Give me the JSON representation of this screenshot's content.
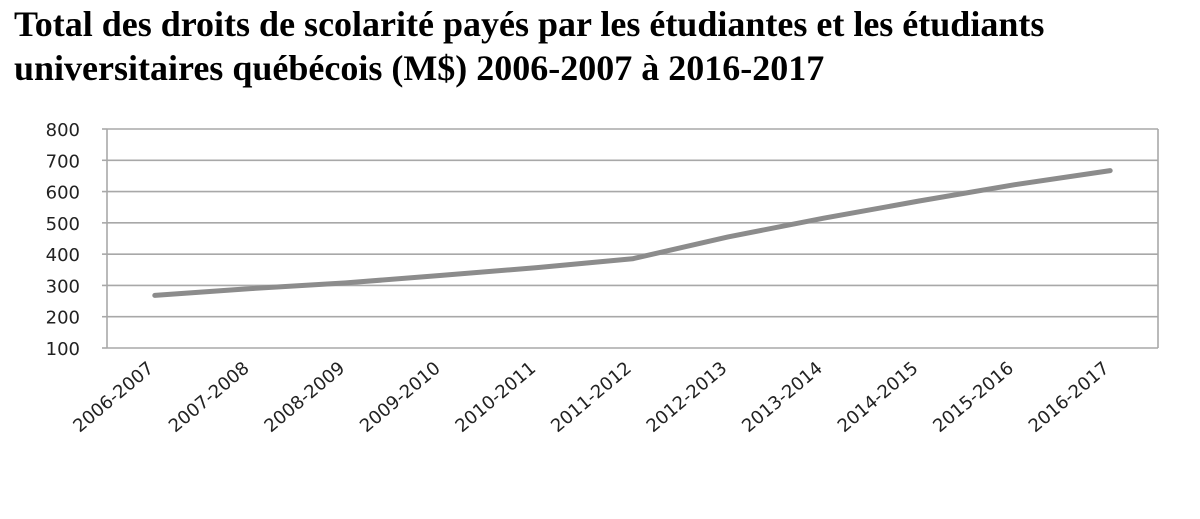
{
  "chart_data": {
    "type": "line",
    "title_line1": "Total des droits de scolarité payés par les étudiantes et les étudiants",
    "title_line2": "universitaires québécois (M$) 2006-2007 à 2016-2017",
    "categories": [
      "2006-2007",
      "2007-2008",
      "2008-2009",
      "2009-2010",
      "2010-2011",
      "2011-2012",
      "2012-2013",
      "2013-2014",
      "2014-2015",
      "2015-2016",
      "2016-2017"
    ],
    "series": [
      {
        "values": [
          268,
          290,
          308,
          332,
          357,
          385,
          455,
          515,
          570,
          622,
          667
        ],
        "color": "#8c8c8c"
      }
    ],
    "ylim": [
      100,
      800
    ],
    "yticks": [
      100,
      200,
      300,
      400,
      500,
      600,
      700,
      800
    ],
    "grid": true,
    "xlabel": "",
    "ylabel": ""
  }
}
